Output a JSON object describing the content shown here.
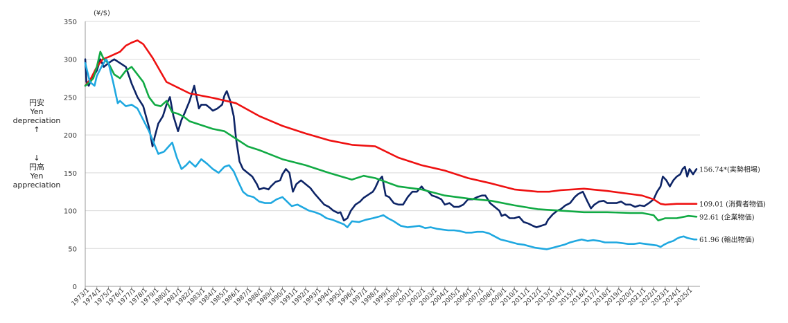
{
  "unit_label": "(¥/$)",
  "side_labels": {
    "upper_jp": "円安",
    "upper_en1": "Yen",
    "upper_en2": "depreciation",
    "upper_arrow": "↑",
    "lower_arrow": "↓",
    "lower_jp": "円高",
    "lower_en1": "Yen",
    "lower_en2": "appreciation"
  },
  "colors": {
    "actual": "#0d2466",
    "consumer": "#ee1111",
    "corporate": "#11aa44",
    "export": "#1fa8e0"
  },
  "chart_data": {
    "type": "line",
    "title": "",
    "xlabel": "",
    "ylabel": "(¥/$)",
    "ylim": [
      0,
      350
    ],
    "yticks": [
      0,
      50,
      100,
      150,
      200,
      250,
      300,
      350
    ],
    "grid": true,
    "xlim": [
      1973.0,
      2026.0
    ],
    "x_ticks": [
      "1973/1",
      "1974/1",
      "1975/1",
      "1976/1",
      "1977/1",
      "1978/1",
      "1979/1",
      "1980/1",
      "1981/1",
      "1982/1",
      "1983/1",
      "1984/1",
      "1985/1",
      "1986/1",
      "1987/1",
      "1988/1",
      "1989/1",
      "1990/1",
      "1991/1",
      "1992/1",
      "1993/1",
      "1994/1",
      "1995/1",
      "1996/1",
      "1997/1",
      "1998/1",
      "1999/1",
      "2000/1",
      "2001/1",
      "2002/1",
      "2003/1",
      "2004/1",
      "2005/1",
      "2006/1",
      "2007/1",
      "2008/1",
      "2009/1",
      "2010/1",
      "2011/1",
      "2012/1",
      "2013/1",
      "2014/1",
      "2015/1",
      "2016/1",
      "2017/1",
      "2018/1",
      "2019/1",
      "2020/1",
      "2021/1",
      "2022/1",
      "2023/1",
      "2024/1",
      "2025/1"
    ],
    "series": [
      {
        "key": "actual",
        "name": "156.74*(実勢相場)",
        "x": [
          1973.0,
          1973.1,
          1973.3,
          1973.6,
          1974.0,
          1974.3,
          1974.6,
          1975.0,
          1975.5,
          1976.0,
          1976.5,
          1977.0,
          1977.5,
          1978.0,
          1978.5,
          1978.8,
          1979.0,
          1979.3,
          1979.7,
          1980.0,
          1980.3,
          1980.6,
          1981.0,
          1981.3,
          1981.6,
          1982.0,
          1982.4,
          1982.8,
          1983.0,
          1983.4,
          1983.8,
          1984.0,
          1984.4,
          1984.8,
          1985.0,
          1985.2,
          1985.5,
          1985.8,
          1986.0,
          1986.3,
          1986.6,
          1987.0,
          1987.4,
          1987.8,
          1988.0,
          1988.4,
          1988.8,
          1989.0,
          1989.4,
          1989.8,
          1990.0,
          1990.3,
          1990.6,
          1990.9,
          1991.2,
          1991.6,
          1992.0,
          1992.4,
          1992.8,
          1993.2,
          1993.6,
          1994.0,
          1994.4,
          1994.8,
          1995.0,
          1995.3,
          1995.6,
          1995.9,
          1996.3,
          1996.7,
          1997.0,
          1997.4,
          1997.8,
          1998.0,
          1998.3,
          1998.6,
          1998.9,
          1999.2,
          1999.6,
          2000.0,
          2000.4,
          2000.8,
          2001.2,
          2001.6,
          2002.0,
          2002.2,
          2002.6,
          2002.9,
          2003.3,
          2003.7,
          2004.0,
          2004.4,
          2004.8,
          2005.2,
          2005.6,
          2006.0,
          2006.4,
          2006.8,
          2007.2,
          2007.5,
          2007.9,
          2008.3,
          2008.7,
          2008.9,
          2009.2,
          2009.6,
          2010.0,
          2010.4,
          2010.8,
          2011.2,
          2011.6,
          2011.9,
          2012.3,
          2012.7,
          2012.9,
          2013.3,
          2013.7,
          2014.0,
          2014.4,
          2014.8,
          2015.2,
          2015.5,
          2015.9,
          2016.3,
          2016.6,
          2016.9,
          2017.3,
          2017.7,
          2018.0,
          2018.4,
          2018.8,
          2019.2,
          2019.6,
          2020.0,
          2020.4,
          2020.8,
          2021.2,
          2021.6,
          2022.0,
          2022.3,
          2022.6,
          2022.8,
          2023.1,
          2023.4,
          2023.7,
          2024.0,
          2024.3,
          2024.5,
          2024.7,
          2024.9,
          2025.1,
          2025.4,
          2025.7
        ],
        "y": [
          300,
          270,
          265,
          275,
          285,
          300,
          290,
          295,
          300,
          295,
          290,
          268,
          250,
          238,
          210,
          185,
          198,
          215,
          225,
          240,
          250,
          225,
          205,
          220,
          230,
          245,
          265,
          235,
          240,
          240,
          235,
          232,
          235,
          240,
          252,
          258,
          245,
          225,
          195,
          165,
          155,
          150,
          145,
          135,
          128,
          130,
          128,
          132,
          138,
          140,
          148,
          155,
          150,
          125,
          135,
          140,
          135,
          130,
          122,
          115,
          108,
          105,
          100,
          97,
          98,
          87,
          90,
          100,
          108,
          112,
          117,
          121,
          125,
          130,
          140,
          145,
          120,
          118,
          110,
          108,
          108,
          118,
          125,
          125,
          132,
          128,
          125,
          120,
          118,
          115,
          108,
          110,
          105,
          105,
          108,
          115,
          115,
          118,
          120,
          120,
          110,
          105,
          100,
          93,
          95,
          90,
          90,
          92,
          85,
          83,
          80,
          78,
          80,
          82,
          88,
          95,
          100,
          102,
          107,
          110,
          118,
          122,
          125,
          112,
          103,
          108,
          112,
          113,
          110,
          110,
          110,
          112,
          108,
          108,
          105,
          107,
          106,
          110,
          115,
          125,
          132,
          145,
          140,
          132,
          140,
          145,
          148,
          155,
          158,
          145,
          155,
          148,
          155
        ]
      },
      {
        "key": "consumer",
        "name": "109.01 (消費者物価)",
        "x": [
          1973.0,
          1973.5,
          1974.0,
          1974.5,
          1975.0,
          1976.0,
          1976.5,
          1977.0,
          1977.5,
          1978.0,
          1978.8,
          1980.0,
          1982.0,
          1984.0,
          1986.0,
          1988.0,
          1990.0,
          1992.0,
          1994.0,
          1996.0,
          1998.0,
          2000.0,
          2002.0,
          2004.0,
          2006.0,
          2008.0,
          2010.0,
          2012.0,
          2013.0,
          2014.0,
          2016.0,
          2018.0,
          2020.0,
          2021.0,
          2022.0,
          2022.6,
          2023.0,
          2024.0,
          2025.0,
          2025.7
        ],
        "y": [
          265,
          275,
          290,
          300,
          303,
          310,
          318,
          322,
          325,
          320,
          302,
          270,
          255,
          249,
          242,
          225,
          212,
          202,
          193,
          187,
          185,
          170,
          160,
          153,
          143,
          136,
          128,
          125,
          125,
          127,
          129,
          126,
          122,
          120,
          115,
          109,
          108,
          109,
          109,
          109
        ]
      },
      {
        "key": "corporate",
        "name": "92.61 (企業物価)",
        "x": [
          1973.0,
          1973.4,
          1973.7,
          1974.0,
          1974.3,
          1974.6,
          1975.0,
          1975.5,
          1976.0,
          1976.5,
          1977.0,
          1977.5,
          1978.0,
          1978.5,
          1979.0,
          1979.5,
          1980.0,
          1980.5,
          1981.0,
          1981.5,
          1982.0,
          1983.0,
          1984.0,
          1985.0,
          1986.0,
          1987.0,
          1988.0,
          1990.0,
          1992.0,
          1994.0,
          1996.0,
          1997.0,
          1998.0,
          2000.0,
          2002.0,
          2004.0,
          2006.0,
          2008.0,
          2010.0,
          2012.0,
          2014.0,
          2016.0,
          2018.0,
          2020.0,
          2021.0,
          2022.0,
          2022.4,
          2023.0,
          2024.0,
          2025.0,
          2025.7
        ],
        "y": [
          265,
          270,
          275,
          290,
          310,
          300,
          295,
          280,
          275,
          285,
          290,
          280,
          270,
          250,
          240,
          238,
          245,
          230,
          228,
          224,
          218,
          213,
          208,
          205,
          195,
          185,
          180,
          168,
          160,
          150,
          141,
          146,
          143,
          132,
          128,
          120,
          116,
          113,
          107,
          102,
          100,
          98,
          98,
          97,
          97,
          94,
          87,
          90,
          90,
          93,
          92
        ]
      },
      {
        "key": "export",
        "name": "61.96 (輸出物価)",
        "x": [
          1973.0,
          1973.4,
          1973.8,
          1974.0,
          1974.4,
          1974.8,
          1975.0,
          1975.4,
          1975.8,
          1976.0,
          1976.5,
          1977.0,
          1977.5,
          1978.0,
          1978.5,
          1978.9,
          1979.3,
          1979.8,
          1980.2,
          1980.5,
          1980.9,
          1981.3,
          1981.7,
          1982.0,
          1982.5,
          1983.0,
          1983.5,
          1984.0,
          1984.5,
          1985.0,
          1985.4,
          1985.8,
          1986.2,
          1986.6,
          1987.0,
          1987.5,
          1988.0,
          1988.5,
          1989.0,
          1989.5,
          1990.0,
          1990.4,
          1990.8,
          1991.3,
          1991.8,
          1992.3,
          1992.8,
          1993.3,
          1993.8,
          1994.3,
          1994.8,
          1995.3,
          1995.6,
          1996.0,
          1996.6,
          1997.2,
          1997.8,
          1998.3,
          1998.7,
          1999.1,
          1999.6,
          2000.2,
          2000.8,
          2001.3,
          2001.8,
          2002.3,
          2002.8,
          2003.3,
          2003.8,
          2004.3,
          2004.8,
          2005.3,
          2005.8,
          2006.3,
          2006.8,
          2007.3,
          2007.8,
          2008.3,
          2008.8,
          2009.3,
          2009.8,
          2010.3,
          2010.8,
          2011.3,
          2011.8,
          2012.3,
          2012.8,
          2013.3,
          2013.8,
          2014.3,
          2014.8,
          2015.3,
          2015.8,
          2016.3,
          2016.8,
          2017.3,
          2017.8,
          2018.3,
          2018.8,
          2019.3,
          2019.8,
          2020.3,
          2020.8,
          2021.3,
          2021.8,
          2022.3,
          2022.6,
          2022.9,
          2023.3,
          2023.7,
          2024.0,
          2024.3,
          2024.6,
          2024.9,
          2025.2,
          2025.5,
          2025.7
        ],
        "y": [
          295,
          270,
          265,
          278,
          290,
          300,
          295,
          270,
          242,
          245,
          238,
          240,
          235,
          220,
          205,
          190,
          175,
          178,
          185,
          190,
          170,
          155,
          160,
          165,
          158,
          168,
          162,
          155,
          150,
          158,
          160,
          152,
          138,
          125,
          120,
          118,
          112,
          110,
          110,
          115,
          118,
          112,
          106,
          108,
          104,
          100,
          98,
          95,
          90,
          88,
          85,
          82,
          78,
          86,
          85,
          88,
          90,
          92,
          94,
          90,
          86,
          80,
          78,
          79,
          80,
          77,
          78,
          76,
          75,
          74,
          74,
          73,
          71,
          71,
          72,
          72,
          70,
          66,
          62,
          60,
          58,
          56,
          55,
          53,
          51,
          50,
          49,
          51,
          53,
          55,
          58,
          60,
          62,
          60,
          61,
          60,
          58,
          58,
          58,
          57,
          56,
          56,
          57,
          56,
          55,
          54,
          52,
          55,
          58,
          60,
          63,
          65,
          66,
          64,
          63,
          62,
          62
        ]
      }
    ]
  }
}
